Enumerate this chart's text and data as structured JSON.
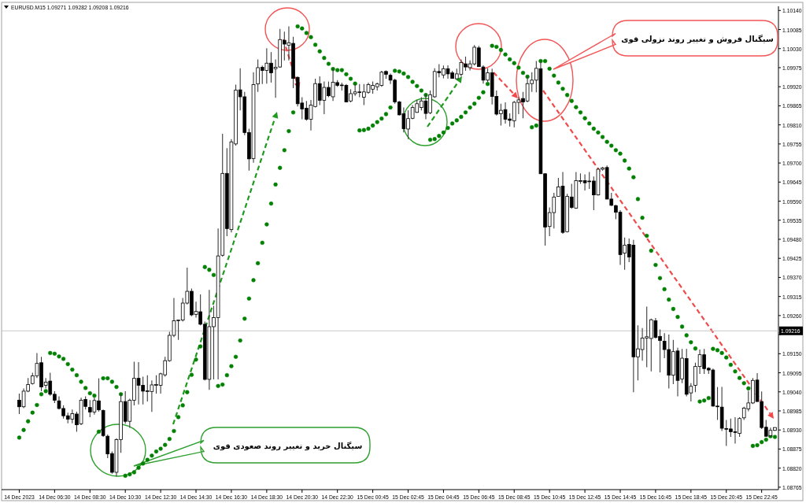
{
  "chart_data": {
    "type": "candlestick",
    "title": "EURUSD.M15 1.09271 1.09282 1.09208 1.09216",
    "categories": [
      "14 Dec 2023",
      null,
      null,
      null,
      null,
      null,
      null,
      null,
      "14 Dec 06:30",
      null,
      null,
      null,
      null,
      null,
      null,
      null,
      "14 Dec 08:30",
      null,
      null,
      null,
      null,
      null,
      null,
      null,
      "14 Dec 10:30",
      null,
      null,
      null,
      null,
      null,
      null,
      null,
      "14 Dec 12:30",
      null,
      null,
      null,
      null,
      null,
      null,
      null,
      "14 Dec 14:30",
      null,
      null,
      null,
      null,
      null,
      null,
      null,
      "14 Dec 16:30",
      null,
      null,
      null,
      null,
      null,
      null,
      null,
      "14 Dec 18:30",
      null,
      null,
      null,
      null,
      null,
      null,
      null,
      "14 Dec 20:30",
      null,
      null,
      null,
      null,
      null,
      null,
      null,
      "14 Dec 22:30",
      null,
      null,
      null,
      null,
      null,
      null,
      null,
      "15 Dec 00:45",
      null,
      null,
      null,
      null,
      null,
      null,
      null,
      "15 Dec 02:45",
      null,
      null,
      null,
      null,
      null,
      null,
      null,
      "15 Dec 04:45",
      null,
      null,
      null,
      null,
      null,
      null,
      null,
      "15 Dec 06:45",
      null,
      null,
      null,
      null,
      null,
      null,
      null,
      "15 Dec 08:45",
      null,
      null,
      null,
      null,
      null,
      null,
      null,
      "15 Dec 10:45",
      null,
      null,
      null,
      null,
      null,
      null,
      null,
      "15 Dec 12:45",
      null,
      null,
      null,
      null,
      null,
      null,
      null,
      "15 Dec 14:45",
      null,
      null,
      null,
      null,
      null,
      null,
      null,
      "15 Dec 16:45",
      null,
      null,
      null,
      null,
      null,
      null,
      null,
      "15 Dec 18:45",
      null,
      null,
      null,
      null,
      null,
      null,
      null,
      "15 Dec 20:45",
      null,
      null,
      null,
      null,
      null,
      null,
      null,
      "15 Dec 22:45",
      null,
      null,
      null
    ],
    "ohlc": [
      [
        1.09016,
        1.09035,
        1.08976,
        1.08997
      ],
      [
        1.08997,
        1.0905,
        1.08993,
        1.09042
      ],
      [
        1.09042,
        1.0908,
        1.09039,
        1.09061
      ],
      [
        1.09064,
        1.09095,
        1.09061,
        1.09086
      ],
      [
        1.09086,
        1.09152,
        1.0908,
        1.09122
      ],
      [
        1.09124,
        1.09141,
        1.09042,
        1.09054
      ],
      [
        1.09059,
        1.0908,
        1.0905,
        1.09068
      ],
      [
        1.09071,
        1.09095,
        1.09029,
        1.09033
      ],
      [
        1.09033,
        1.09042,
        1.09008,
        1.09016
      ],
      [
        1.09014,
        1.09027,
        1.08989,
        1.08992
      ],
      [
        1.08992,
        1.09001,
        1.08963,
        1.08971
      ],
      [
        1.08971,
        1.0898,
        1.08949,
        1.08961
      ],
      [
        1.08961,
        1.08989,
        1.08949,
        1.08977
      ],
      [
        1.08976,
        1.08983,
        1.08925,
        1.08945
      ],
      [
        1.08948,
        1.09023,
        1.08944,
        1.09016
      ],
      [
        1.09018,
        1.09027,
        1.08989,
        1.08998
      ],
      [
        1.08995,
        1.09016,
        1.08967,
        1.08982
      ],
      [
        1.08982,
        1.09023,
        1.08974,
        1.09015
      ],
      [
        1.09014,
        1.09079,
        1.08983,
        1.08988
      ],
      [
        1.08986,
        1.08989,
        1.0891,
        1.08914
      ],
      [
        1.08912,
        1.08917,
        1.08849,
        1.08861
      ],
      [
        1.08862,
        1.08868,
        1.08804,
        1.08808
      ],
      [
        1.08808,
        1.08906,
        1.08796,
        1.08902
      ],
      [
        1.08902,
        1.09035,
        1.08864,
        1.09012
      ],
      [
        1.09012,
        1.09042,
        1.08948,
        1.08955
      ],
      [
        1.08955,
        1.0902,
        1.08936,
        1.09016
      ],
      [
        1.09016,
        1.09127,
        1.09001,
        1.09079
      ],
      [
        1.09079,
        1.09126,
        1.09004,
        1.09059
      ],
      [
        1.09059,
        1.09084,
        1.09004,
        1.09042
      ],
      [
        1.09041,
        1.09088,
        1.09012,
        1.09043
      ],
      [
        1.09041,
        1.09073,
        1.08982,
        1.0906
      ],
      [
        1.09059,
        1.09088,
        1.09035,
        1.09061
      ],
      [
        1.09059,
        1.09095,
        1.09035,
        1.09092
      ],
      [
        1.09089,
        1.09141,
        1.09084,
        1.0913
      ],
      [
        1.0913,
        1.09213,
        1.09127,
        1.09203
      ],
      [
        1.09203,
        1.09311,
        1.09198,
        1.09245
      ],
      [
        1.09245,
        1.09248,
        1.0919,
        1.09247
      ],
      [
        1.09247,
        1.09311,
        1.09243,
        1.09296
      ],
      [
        1.09296,
        1.09398,
        1.09292,
        1.0933
      ],
      [
        1.0933,
        1.09338,
        1.09258,
        1.09262
      ],
      [
        1.09263,
        1.093,
        1.09254,
        1.09272
      ],
      [
        1.09271,
        1.09321,
        1.09232,
        1.09235
      ],
      [
        1.09235,
        1.09243,
        1.09073,
        1.09076
      ],
      [
        1.09076,
        1.09334,
        1.09046,
        1.09228
      ],
      [
        1.09228,
        1.09288,
        1.09076,
        1.09254
      ],
      [
        1.09254,
        1.09511,
        1.09076,
        1.09432
      ],
      [
        1.09434,
        1.09784,
        1.0943,
        1.0967
      ],
      [
        1.0967,
        1.09743,
        1.09489,
        1.09511
      ],
      [
        1.09508,
        1.09769,
        1.095,
        1.09761
      ],
      [
        1.09755,
        1.09926,
        1.0975,
        1.0991
      ],
      [
        1.09911,
        1.09973,
        1.09852,
        1.09891
      ],
      [
        1.09891,
        1.09905,
        1.0978,
        1.09788
      ],
      [
        1.09788,
        1.09799,
        1.09678,
        1.09712
      ],
      [
        1.09713,
        1.09962,
        1.09701,
        1.09926
      ],
      [
        1.09928,
        1.09999,
        1.09905,
        1.09975
      ],
      [
        1.09976,
        1.09981,
        1.09928,
        1.09967
      ],
      [
        1.09967,
        1.10031,
        1.09929,
        1.09988
      ],
      [
        1.09988,
        1.1002,
        1.09932,
        1.0996
      ],
      [
        1.09972,
        1.09999,
        1.09888,
        1.09976
      ],
      [
        1.09977,
        1.10087,
        1.09975,
        1.10056
      ],
      [
        1.10054,
        1.10079,
        1.09996,
        1.10043
      ],
      [
        1.1004,
        1.10094,
        1.09996,
        1.10047
      ],
      [
        1.10045,
        1.10064,
        1.09916,
        1.09944
      ],
      [
        1.09947,
        1.0995,
        1.09863,
        1.09871
      ],
      [
        1.09873,
        1.0989,
        1.09826,
        1.09856
      ],
      [
        1.09858,
        1.09879,
        1.09822,
        1.09826
      ],
      [
        1.09826,
        1.09882,
        1.09794,
        1.09867
      ],
      [
        1.09863,
        1.09943,
        1.0986,
        1.09929
      ],
      [
        1.09929,
        1.0995,
        1.09867,
        1.09881
      ],
      [
        1.09881,
        1.09935,
        1.09841,
        1.09918
      ],
      [
        1.09918,
        1.09935,
        1.0989,
        1.09894
      ],
      [
        1.09891,
        1.09972,
        1.09879,
        1.09933
      ],
      [
        1.09932,
        1.09939,
        1.0992,
        1.09924
      ],
      [
        1.09924,
        1.09932,
        1.09909,
        1.09925
      ],
      [
        1.09924,
        1.09928,
        1.09875,
        1.09876
      ],
      [
        1.09879,
        1.09913,
        1.09875,
        1.099
      ],
      [
        1.099,
        1.09928,
        1.09894,
        1.09905
      ],
      [
        1.09905,
        1.09928,
        1.0989,
        1.09904
      ],
      [
        1.0989,
        1.09928,
        1.09867,
        1.09905
      ],
      [
        1.09904,
        1.09932,
        1.099,
        1.09926
      ],
      [
        1.09913,
        1.09935,
        1.099,
        1.09924
      ],
      [
        1.0992,
        1.09932,
        1.09909,
        1.09928
      ],
      [
        1.09924,
        1.09966,
        1.0992,
        1.09962
      ],
      [
        1.09964,
        1.09967,
        1.09943,
        1.09956
      ],
      [
        1.09953,
        1.09958,
        1.09928,
        1.09939
      ],
      [
        1.09939,
        1.09943,
        1.09871,
        1.09876
      ],
      [
        1.09876,
        1.09879,
        1.09837,
        1.09839
      ],
      [
        1.09842,
        1.0986,
        1.09788,
        1.09799
      ],
      [
        1.09798,
        1.09852,
        1.09769,
        1.09828
      ],
      [
        1.09829,
        1.09867,
        1.09826,
        1.0986
      ],
      [
        1.09846,
        1.09882,
        1.09845,
        1.09871
      ],
      [
        1.0986,
        1.0989,
        1.09852,
        1.09879
      ],
      [
        1.09879,
        1.09897,
        1.09826,
        1.09843
      ],
      [
        1.09845,
        1.09909,
        1.09841,
        1.09897
      ],
      [
        1.09891,
        1.09973,
        1.09888,
        1.09964
      ],
      [
        1.09964,
        1.09985,
        1.09947,
        1.0996
      ],
      [
        1.09954,
        1.09981,
        1.09944,
        1.09972
      ],
      [
        1.09972,
        1.09982,
        1.09943,
        1.09957
      ],
      [
        1.0996,
        1.09966,
        1.09943,
        1.09944
      ],
      [
        1.09943,
        1.09972,
        1.09941,
        1.09957
      ],
      [
        1.09956,
        1.09999,
        1.0995,
        1.0999
      ],
      [
        1.09986,
        1.10007,
        1.09966,
        1.09977
      ],
      [
        1.09975,
        1.09996,
        1.09967,
        1.09986
      ],
      [
        1.09986,
        1.1004,
        1.09981,
        1.10034
      ],
      [
        1.10032,
        1.10038,
        1.09977,
        1.09978
      ],
      [
        1.09977,
        1.09982,
        1.09929,
        1.09939
      ],
      [
        1.09939,
        1.09973,
        1.09934,
        1.0996
      ],
      [
        1.0996,
        1.09972,
        1.09869,
        1.09892
      ],
      [
        1.09892,
        1.09909,
        1.09837,
        1.09841
      ],
      [
        1.09842,
        1.09871,
        1.09808,
        1.09852
      ],
      [
        1.09854,
        1.09875,
        1.09814,
        1.09826
      ],
      [
        1.09827,
        1.09843,
        1.09805,
        1.09823
      ],
      [
        1.09822,
        1.09879,
        1.09803,
        1.09875
      ],
      [
        1.09875,
        1.0989,
        1.09841,
        1.09882
      ],
      [
        1.09886,
        1.09905,
        1.09829,
        1.09876
      ],
      [
        1.09879,
        1.0995,
        1.09875,
        1.09929
      ],
      [
        1.09929,
        1.09962,
        1.09905,
        1.09939
      ],
      [
        1.09939,
        1.09994,
        1.09904,
        1.09973
      ],
      [
        1.09972,
        1.09992,
        1.09669,
        1.09669
      ],
      [
        1.09669,
        1.0967,
        1.09462,
        1.09515
      ],
      [
        1.09517,
        1.09572,
        1.09489,
        1.09557
      ],
      [
        1.09557,
        1.09614,
        1.09511,
        1.09602
      ],
      [
        1.09604,
        1.09657,
        1.09604,
        1.09631
      ],
      [
        1.09633,
        1.09674,
        1.09496,
        1.095
      ],
      [
        1.09502,
        1.09611,
        1.095,
        1.09604
      ],
      [
        1.09602,
        1.0964,
        1.09568,
        1.09572
      ],
      [
        1.0957,
        1.09674,
        1.09568,
        1.09649
      ],
      [
        1.09648,
        1.0967,
        1.0964,
        1.09649
      ],
      [
        1.09649,
        1.09667,
        1.09621,
        1.09643
      ],
      [
        1.09648,
        1.09674,
        1.09625,
        1.09646
      ],
      [
        1.09648,
        1.09661,
        1.09564,
        1.09608
      ],
      [
        1.09608,
        1.09686,
        1.09606,
        1.09682
      ],
      [
        1.09682,
        1.09689,
        1.09678,
        1.09686
      ],
      [
        1.09687,
        1.09693,
        1.09595,
        1.09596
      ],
      [
        1.09596,
        1.09614,
        1.09576,
        1.09578
      ],
      [
        1.09577,
        1.0958,
        1.09538,
        1.09558
      ],
      [
        1.09558,
        1.09564,
        1.09406,
        1.09436
      ],
      [
        1.0944,
        1.09485,
        1.09392,
        1.09463
      ],
      [
        1.09465,
        1.09482,
        1.09414,
        1.09429
      ],
      [
        1.09463,
        1.09478,
        1.09039,
        1.09141
      ],
      [
        1.09141,
        1.09232,
        1.09073,
        1.09164
      ],
      [
        1.09162,
        1.09224,
        1.0913,
        1.09195
      ],
      [
        1.09195,
        1.09286,
        1.09111,
        1.09199
      ],
      [
        1.09194,
        1.09251,
        1.09099,
        1.09248
      ],
      [
        1.09245,
        1.09253,
        1.09194,
        1.09197
      ],
      [
        1.092,
        1.0922,
        1.09096,
        1.09188
      ],
      [
        1.09186,
        1.09209,
        1.09137,
        1.09162
      ],
      [
        1.09162,
        1.09205,
        1.0905,
        1.09088
      ],
      [
        1.09088,
        1.0919,
        1.09062,
        1.09156
      ],
      [
        1.09158,
        1.09167,
        1.09027,
        1.09073
      ],
      [
        1.09077,
        1.09164,
        1.09065,
        1.09137
      ],
      [
        1.09136,
        1.09164,
        1.09027,
        1.09033
      ],
      [
        1.09037,
        1.09065,
        1.09012,
        1.09056
      ],
      [
        1.09059,
        1.09124,
        1.09039,
        1.09113
      ],
      [
        1.09113,
        1.09162,
        1.09092,
        1.09147
      ],
      [
        1.09147,
        1.09164,
        1.09092,
        1.09107
      ],
      [
        1.09108,
        1.09111,
        1.09092,
        1.09103
      ],
      [
        1.09103,
        1.09107,
        1.08997,
        1.08999
      ],
      [
        1.08999,
        1.09054,
        1.08959,
        1.08997
      ],
      [
        1.08996,
        1.09054,
        1.08927,
        1.08935
      ],
      [
        1.08934,
        1.08959,
        1.08884,
        1.08933
      ],
      [
        1.08933,
        1.08963,
        1.0891,
        1.08925
      ],
      [
        1.08925,
        1.08967,
        1.08891,
        1.08923
      ],
      [
        1.0892,
        1.08967,
        1.0891,
        1.08963
      ],
      [
        1.08965,
        1.08997,
        1.08959,
        1.08993
      ],
      [
        1.08991,
        1.09043,
        1.08984,
        1.09008
      ],
      [
        1.09008,
        1.0908,
        1.09005,
        1.09073
      ],
      [
        1.09074,
        1.09094,
        1.09012,
        1.09012
      ],
      [
        1.09012,
        1.09041,
        1.08933,
        1.08937
      ],
      [
        1.08938,
        1.08959,
        1.0891,
        1.08912
      ],
      [
        1.08914,
        1.08937,
        1.0891,
        1.08929
      ],
      [
        1.08929,
        1.08938,
        1.08927,
        1.08937
      ]
    ],
    "series": [
      {
        "type": "scatter",
        "color": "#008000",
        "values": [
          1.08908,
          1.0893,
          1.08955,
          1.0898,
          1.09002,
          1.09033,
          1.09042,
          1.09152,
          1.0915,
          1.09142,
          1.09135,
          1.0912,
          1.09104,
          1.09088,
          1.09069,
          1.09051,
          1.09036,
          1.09029,
          1.08925,
          1.09079,
          1.09079,
          1.09069,
          1.09054,
          1.09033,
          1.08798,
          1.08802,
          1.08808,
          1.08821,
          1.08833,
          1.08844,
          1.08856,
          1.08868,
          1.08876,
          1.08887,
          1.08904,
          1.08927,
          1.08967,
          1.09001,
          1.09039,
          1.09089,
          1.09133,
          1.09171,
          1.094,
          1.09392,
          1.09377,
          1.09057,
          1.09061,
          1.09088,
          1.09114,
          1.09141,
          1.09188,
          1.09251,
          1.09309,
          1.09362,
          1.09411,
          1.0947,
          1.09523,
          1.09583,
          1.09638,
          1.09686,
          1.09737,
          1.09792,
          1.09846,
          1.10094,
          1.10088,
          1.10075,
          1.10063,
          1.10041,
          1.10022,
          1.10003,
          1.09986,
          1.09971,
          1.09968,
          1.09968,
          1.09956,
          1.09943,
          1.09929,
          1.09794,
          1.09795,
          1.09799,
          1.09808,
          1.09818,
          1.09828,
          1.09841,
          1.0986,
          1.09966,
          1.09964,
          1.09958,
          1.09948,
          1.09934,
          1.09922,
          1.09909,
          1.09896,
          1.09767,
          1.09769,
          1.09778,
          1.09788,
          1.09801,
          1.09814,
          1.09823,
          1.09833,
          1.09846,
          1.0986,
          1.09871,
          1.09888,
          1.09904,
          1.09928,
          1.10038,
          1.10035,
          1.10026,
          1.10013,
          1.09999,
          1.09988,
          1.09975,
          1.0996,
          1.09949,
          1.09803,
          1.09808,
          1.09994,
          1.09994,
          1.09972,
          1.09952,
          1.09932,
          1.09914,
          1.09896,
          1.09879,
          1.09861,
          1.09846,
          1.09829,
          1.09814,
          1.09799,
          1.09788,
          1.09775,
          1.09761,
          1.0975,
          1.09737,
          1.09727,
          1.09707,
          1.09684,
          1.09659,
          1.09596,
          1.09542,
          1.0949,
          1.09447,
          1.09406,
          1.09368,
          1.09336,
          1.09306,
          1.09279,
          1.09256,
          1.09228,
          1.09203,
          1.09183,
          1.09165,
          1.09012,
          1.09015,
          1.09022,
          1.09164,
          1.0916,
          1.09152,
          1.09139,
          1.09118,
          1.09099,
          1.0908,
          1.09065,
          1.0905,
          1.08884,
          1.08886,
          1.08895,
          1.08902,
          1.08912,
          1.0891
        ]
      }
    ],
    "marker": "circle",
    "ylim": [
      1.08758,
      1.10152
    ],
    "yticks": [
      {
        "value": 1.1014,
        "label": "1.10140"
      },
      {
        "value": 1.10085,
        "label": "1.10085"
      },
      {
        "value": 1.1003,
        "label": "1.10030"
      },
      {
        "value": 1.09975,
        "label": "1.09975"
      },
      {
        "value": 1.0992,
        "label": "1.09920"
      },
      {
        "value": 1.09865,
        "label": "1.09865"
      },
      {
        "value": 1.0981,
        "label": "1.09810"
      },
      {
        "value": 1.09755,
        "label": "1.09755"
      },
      {
        "value": 1.097,
        "label": "1.09700"
      },
      {
        "value": 1.09645,
        "label": "1.09645"
      },
      {
        "value": 1.0959,
        "label": "1.09590"
      },
      {
        "value": 1.09535,
        "label": "1.09535"
      },
      {
        "value": 1.0948,
        "label": "1.09480"
      },
      {
        "value": 1.09425,
        "label": "1.09425"
      },
      {
        "value": 1.0937,
        "label": "1.09370"
      },
      {
        "value": 1.09315,
        "label": "1.09315"
      },
      {
        "value": 1.0926,
        "label": "1.09260"
      },
      {
        "value": 1.09205,
        "label": null
      },
      {
        "value": 1.0915,
        "label": "1.09150"
      },
      {
        "value": 1.09095,
        "label": "1.09095"
      },
      {
        "value": 1.0904,
        "label": "1.09040"
      },
      {
        "value": 1.08985,
        "label": "1.08985"
      },
      {
        "value": 1.0893,
        "label": "1.08930"
      },
      {
        "value": 1.08875,
        "label": "1.08875"
      },
      {
        "value": 1.0882,
        "label": "1.08820"
      },
      {
        "value": 1.08765,
        "label": "1.08765"
      }
    ],
    "ref_lines": [
      {
        "axis": "y",
        "value": 1.09216,
        "label": "1.09216",
        "color": "#c8c8c8"
      }
    ],
    "annotations": [
      "سیگنال فروش و تغییر روند نزولی قوی",
      "سیگنال خرید و تغییر روند صعودی قوی"
    ]
  }
}
